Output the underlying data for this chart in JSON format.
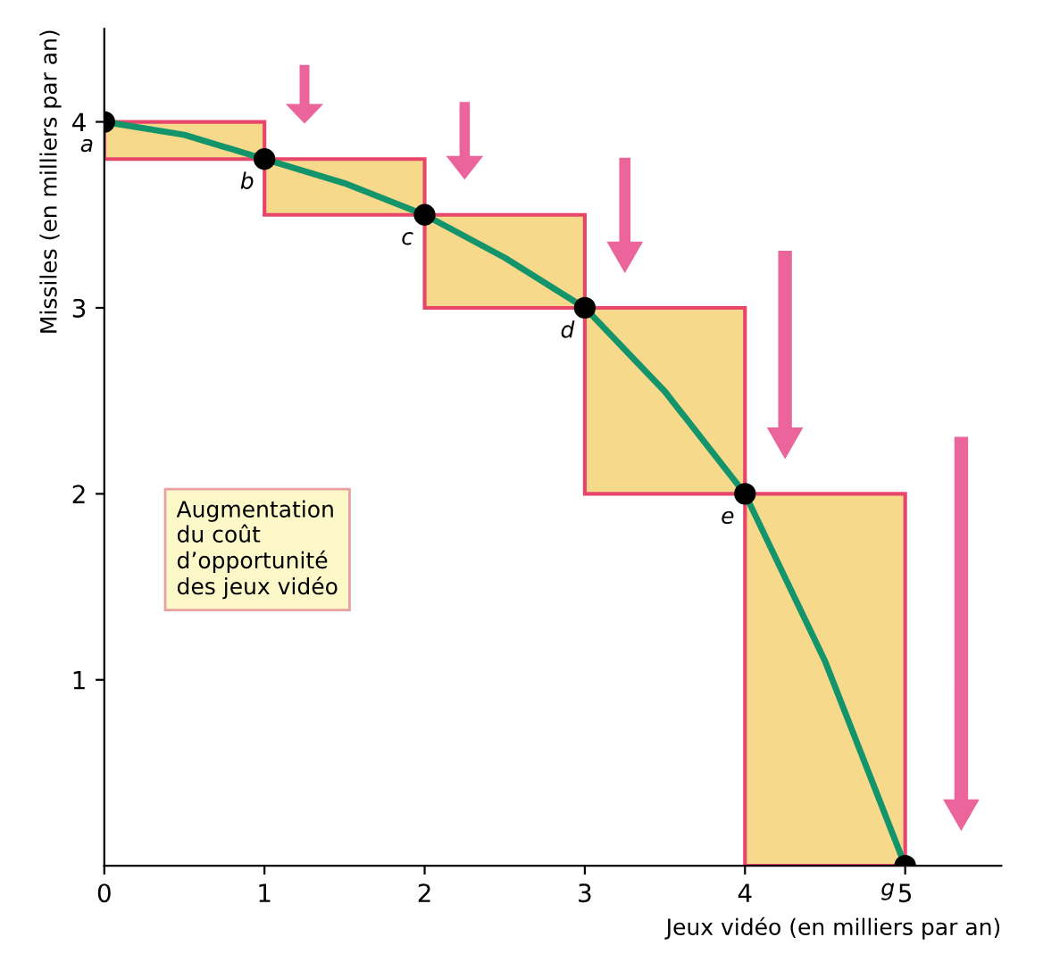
{
  "chart_data": {
    "type": "bar",
    "xlabel": "Jeux vidéo (en milliers par an)",
    "ylabel": "Missiles (en milliers par an)",
    "xlim": [
      0,
      5.6
    ],
    "ylim": [
      0,
      4.5
    ],
    "xticks": [
      0,
      1,
      2,
      3,
      4,
      5
    ],
    "yticks": [
      1,
      2,
      3,
      4
    ],
    "series": [
      {
        "color": "#f7d98c",
        "x": [
          0.5,
          1.5,
          2.5,
          3.5,
          4.5
        ],
        "base": [
          3.8,
          3.5,
          3,
          2,
          0
        ],
        "values": [
          0.2,
          0.3,
          0.5,
          1,
          2
        ]
      },
      {
        "type": "line",
        "color": "#14946a",
        "x": [
          0,
          0.5,
          1,
          1.5,
          2,
          2.5,
          3,
          3.5,
          4,
          4.5,
          5
        ],
        "values": [
          4,
          3.93,
          3.8,
          3.67,
          3.5,
          3.27,
          3,
          2.55,
          2,
          1.1,
          0
        ]
      },
      {
        "type": "scatter",
        "marker": "circle",
        "color": "#000000",
        "x": [
          0,
          1,
          2,
          3,
          4,
          5
        ],
        "values": [
          4,
          3.8,
          3.5,
          3,
          2,
          0
        ]
      }
    ],
    "annotations": [
      {
        "text": "a",
        "x": 0,
        "y": 4
      },
      {
        "text": "b",
        "x": 1,
        "y": 3.8
      },
      {
        "text": "c",
        "x": 2,
        "y": 3.5
      },
      {
        "text": "d",
        "x": 3,
        "y": 3
      },
      {
        "text": "e",
        "x": 4,
        "y": 2
      },
      {
        "text": "g",
        "x": 5,
        "y": 0
      },
      "Augmentation\ndu coût\nd’opportunité\ndes jeux vidéo"
    ],
    "grid": false,
    "legend": false
  }
}
